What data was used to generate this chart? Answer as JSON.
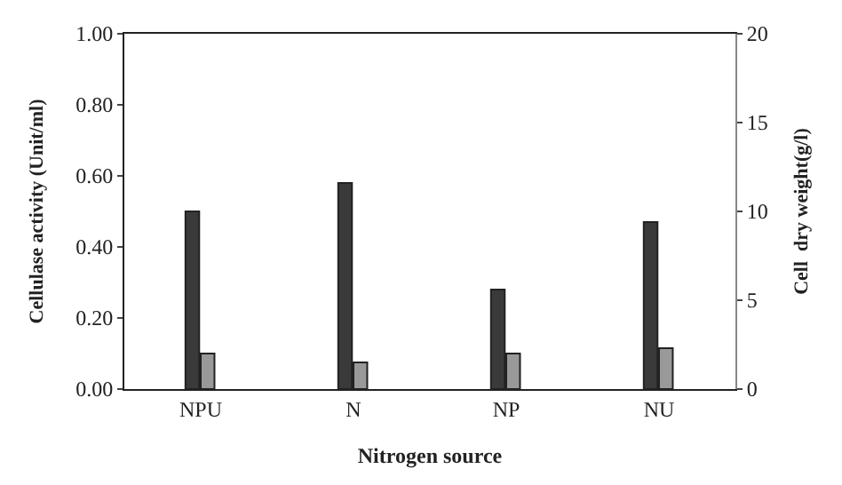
{
  "chart_data": {
    "type": "bar",
    "xlabel": "Nitrogen source",
    "ylabel": "Cellulase activity (Unit/ml)",
    "y2label": "Cell  dry weight(g/l)",
    "categories": [
      "NPU",
      "N",
      "NP",
      "NU"
    ],
    "series": [
      {
        "color": "#3a3a3a",
        "values": [
          0.5,
          0.58,
          0.28,
          0.47
        ]
      },
      {
        "color": "#999999",
        "values": [
          2.0,
          1.5,
          2.0,
          2.3
        ],
        "axis": "y2"
      }
    ],
    "ylim": [
      0,
      1.0
    ],
    "yticks": [
      {
        "value": 0,
        "label": "0.00"
      },
      {
        "value": 0.2,
        "label": "0.20"
      },
      {
        "value": 0.4,
        "label": "0.40"
      },
      {
        "value": 0.6,
        "label": "0.60"
      },
      {
        "value": 0.8,
        "label": "0.80"
      },
      {
        "value": 1.0,
        "label": "1.00"
      }
    ],
    "y2lim": [
      0,
      20
    ],
    "y2ticks": [
      0,
      5,
      10,
      15,
      20
    ]
  }
}
